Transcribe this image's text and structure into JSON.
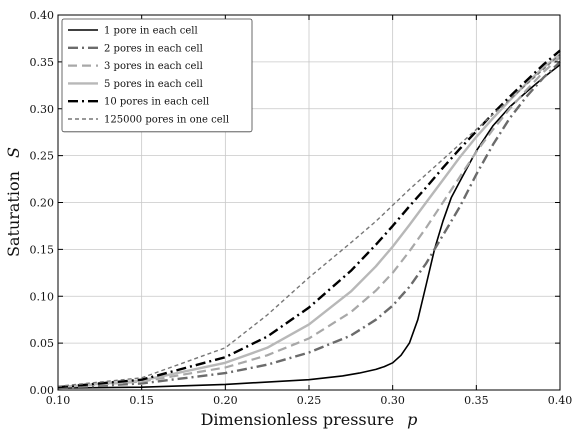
{
  "chart_data": {
    "type": "line",
    "xlabel": "Dimensionless pressure",
    "xlabel_symbol": "p",
    "ylabel": "Saturation",
    "ylabel_symbol": "S",
    "xlim": [
      0.1,
      0.4
    ],
    "ylim": [
      0.0,
      0.4
    ],
    "xticks": [
      "0.10",
      "0.15",
      "0.20",
      "0.25",
      "0.30",
      "0.35",
      "0.40"
    ],
    "yticks": [
      "0.00",
      "0.05",
      "0.10",
      "0.15",
      "0.20",
      "0.25",
      "0.30",
      "0.35",
      "0.40"
    ],
    "grid": true,
    "legend_position": "top-left",
    "series": [
      {
        "name": "1 pore in each cell",
        "color": "#000000",
        "style": "solid",
        "width": 1.6,
        "x": [
          0.1,
          0.15,
          0.2,
          0.25,
          0.27,
          0.28,
          0.29,
          0.295,
          0.3,
          0.305,
          0.31,
          0.315,
          0.32,
          0.325,
          0.33,
          0.335,
          0.34,
          0.35,
          0.36,
          0.37,
          0.38,
          0.39,
          0.4
        ],
        "y": [
          0.002,
          0.003,
          0.006,
          0.011,
          0.015,
          0.018,
          0.022,
          0.025,
          0.029,
          0.037,
          0.05,
          0.075,
          0.112,
          0.15,
          0.18,
          0.205,
          0.222,
          0.255,
          0.282,
          0.302,
          0.318,
          0.333,
          0.347
        ]
      },
      {
        "name": "2 pores in each cell",
        "color": "#6b6b6b",
        "style": "dashdot",
        "width": 2.4,
        "x": [
          0.1,
          0.15,
          0.2,
          0.225,
          0.25,
          0.275,
          0.29,
          0.3,
          0.31,
          0.32,
          0.33,
          0.34,
          0.35,
          0.36,
          0.37,
          0.38,
          0.39,
          0.4
        ],
        "y": [
          0.002,
          0.007,
          0.018,
          0.027,
          0.04,
          0.058,
          0.075,
          0.09,
          0.11,
          0.135,
          0.165,
          0.195,
          0.23,
          0.262,
          0.29,
          0.313,
          0.333,
          0.35
        ]
      },
      {
        "name": "3 pores in each cell",
        "color": "#a8a8a8",
        "style": "dashed",
        "width": 2.2,
        "x": [
          0.1,
          0.15,
          0.2,
          0.225,
          0.25,
          0.275,
          0.29,
          0.3,
          0.31,
          0.32,
          0.33,
          0.34,
          0.35,
          0.36,
          0.37,
          0.38,
          0.39,
          0.4
        ],
        "y": [
          0.003,
          0.009,
          0.024,
          0.037,
          0.055,
          0.083,
          0.106,
          0.125,
          0.148,
          0.173,
          0.2,
          0.227,
          0.254,
          0.278,
          0.3,
          0.32,
          0.339,
          0.355
        ]
      },
      {
        "name": "5 pores in each cell",
        "color": "#b8b8b8",
        "style": "solid",
        "width": 2.4,
        "x": [
          0.1,
          0.15,
          0.2,
          0.225,
          0.25,
          0.275,
          0.29,
          0.3,
          0.31,
          0.32,
          0.33,
          0.34,
          0.35,
          0.36,
          0.37,
          0.38,
          0.39,
          0.4
        ],
        "y": [
          0.003,
          0.01,
          0.029,
          0.045,
          0.07,
          0.105,
          0.132,
          0.153,
          0.176,
          0.2,
          0.224,
          0.248,
          0.27,
          0.29,
          0.309,
          0.327,
          0.344,
          0.358
        ]
      },
      {
        "name": "10 pores in each cell",
        "color": "#000000",
        "style": "dashdot",
        "width": 2.4,
        "x": [
          0.1,
          0.15,
          0.2,
          0.225,
          0.25,
          0.275,
          0.29,
          0.3,
          0.31,
          0.32,
          0.33,
          0.34,
          0.35,
          0.36,
          0.37,
          0.38,
          0.39,
          0.4
        ],
        "y": [
          0.003,
          0.011,
          0.035,
          0.057,
          0.088,
          0.127,
          0.155,
          0.175,
          0.196,
          0.216,
          0.237,
          0.257,
          0.276,
          0.295,
          0.313,
          0.33,
          0.347,
          0.362
        ]
      },
      {
        "name": "125000 pores in one cell",
        "color": "#777777",
        "style": "shortdash",
        "width": 1.4,
        "x": [
          0.1,
          0.15,
          0.2,
          0.225,
          0.25,
          0.275,
          0.29,
          0.3,
          0.31,
          0.32,
          0.33,
          0.34,
          0.35,
          0.36,
          0.37,
          0.38,
          0.39,
          0.4
        ],
        "y": [
          0.004,
          0.013,
          0.045,
          0.08,
          0.12,
          0.157,
          0.18,
          0.197,
          0.214,
          0.23,
          0.246,
          0.262,
          0.278,
          0.294,
          0.31,
          0.326,
          0.342,
          0.358
        ]
      }
    ]
  }
}
